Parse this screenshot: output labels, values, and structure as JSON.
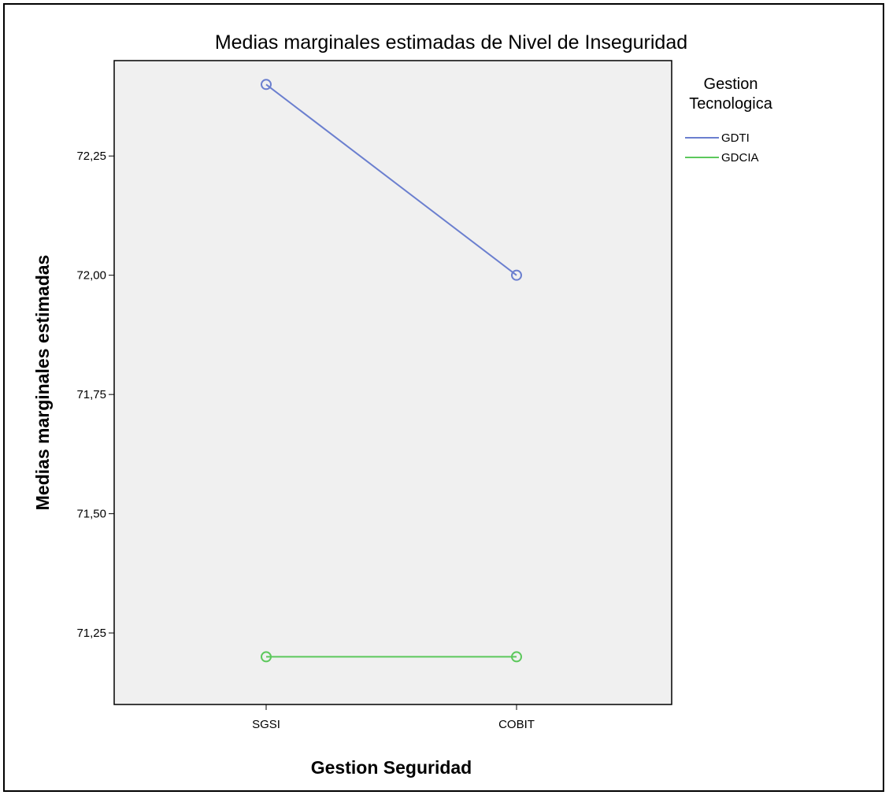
{
  "chart_data": {
    "type": "line",
    "title": "Medias marginales estimadas de Nivel de Inseguridad",
    "xlabel": "Gestion Seguridad",
    "ylabel": "Medias marginales estimadas",
    "categories": [
      "SGSI",
      "COBIT"
    ],
    "ylim": [
      71.1,
      72.45
    ],
    "yticks": [
      71.25,
      71.5,
      71.75,
      72.0,
      72.25
    ],
    "ytick_labels": [
      "71,25",
      "71,50",
      "71,75",
      "72,00",
      "72,25"
    ],
    "grid": false,
    "plot_background": "#f0f0f0",
    "legend": {
      "title": "Gestion Tecnologica",
      "title_lines": [
        "Gestion",
        "Tecnologica"
      ],
      "placement": "right"
    },
    "series": [
      {
        "name": "GDTI",
        "values": [
          72.4,
          72.0
        ],
        "color": "#6b7fcf"
      },
      {
        "name": "GDCIA",
        "values": [
          71.2,
          71.2
        ],
        "color": "#5cc85c"
      }
    ]
  }
}
